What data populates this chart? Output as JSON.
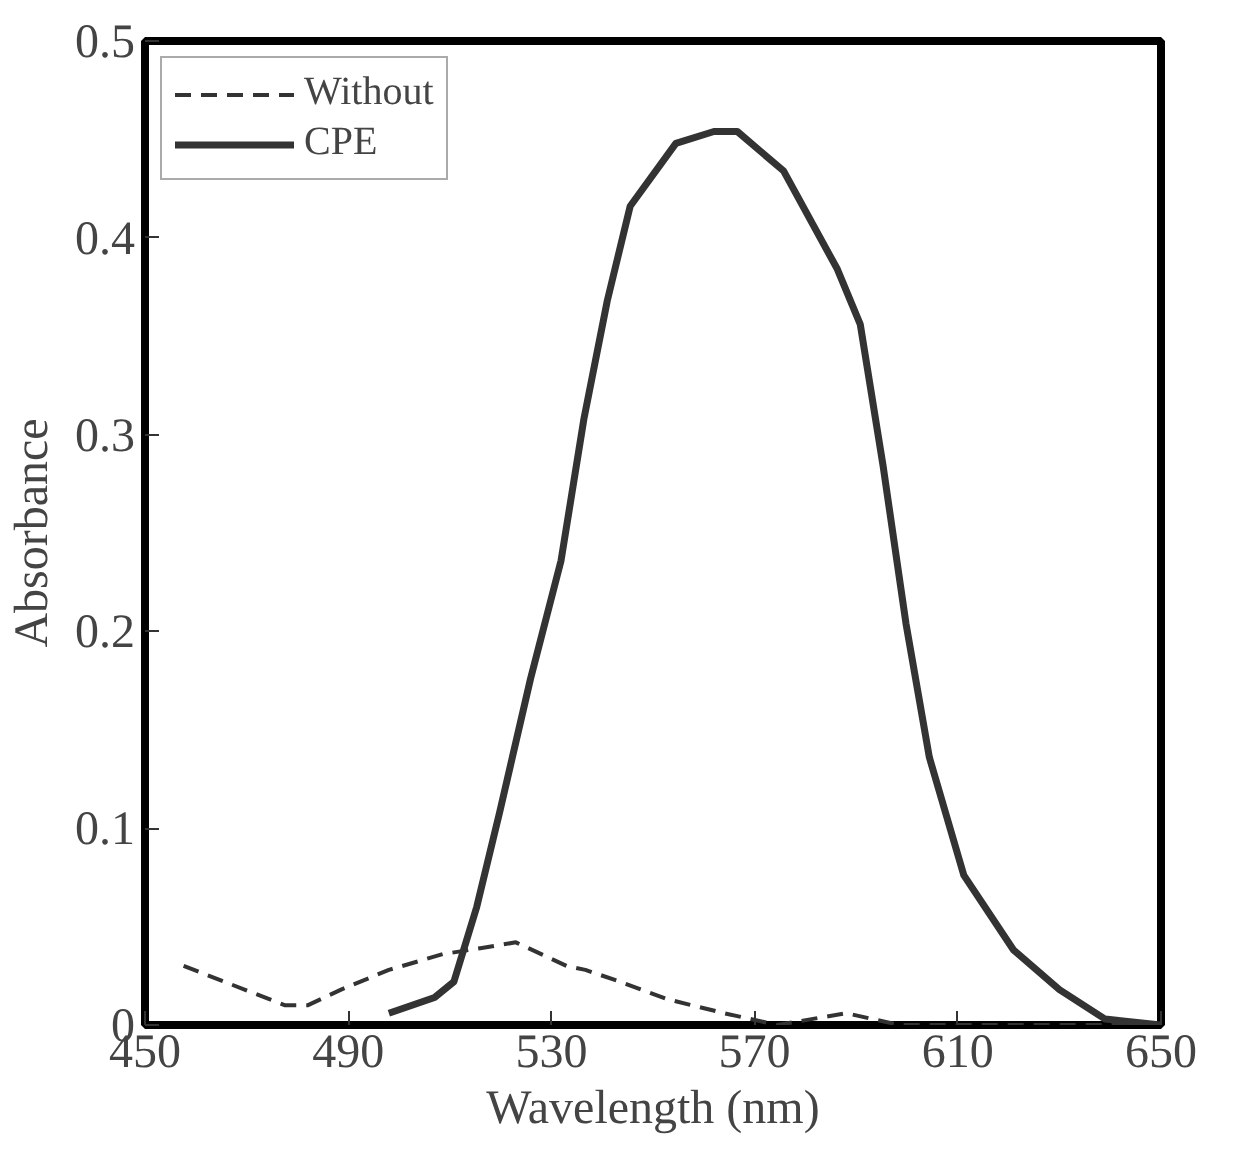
{
  "chart_data": {
    "type": "line",
    "xlabel": "Wavelength (nm)",
    "ylabel": "Absorbance",
    "xlim": [
      450,
      650
    ],
    "xticks": [
      450,
      490,
      530,
      570,
      610,
      650
    ],
    "ylim": [
      0,
      0.5
    ],
    "yticks": [
      0,
      0.1,
      0.2,
      0.3,
      0.4,
      0.5
    ],
    "grid": false,
    "legend": "top left",
    "series": [
      {
        "name": "Without",
        "color": "#333333",
        "line_style": "dashed",
        "x": [
          457.6,
          477.6,
          482,
          488.6,
          498,
          508.6,
          516,
          523,
          533,
          536.7,
          543.5,
          553,
          564,
          574.5,
          588,
          598.6,
          650
        ],
        "values": [
          0.03,
          0.01,
          0.01,
          0.018,
          0.028,
          0.036,
          0.039,
          0.042,
          0.03,
          0.028,
          0.022,
          0.013,
          0.006,
          0.0,
          0.006,
          0.0,
          0.0
        ]
      },
      {
        "name": "CPE",
        "color": "#333333",
        "line_style": "solid",
        "x": [
          498,
          507,
          510.8,
          515.3,
          519.8,
          525.9,
          531.9,
          536.4,
          541,
          545.5,
          554.5,
          562,
          566.6,
          575.7,
          586.3,
          590.8,
          595.3,
          599.8,
          604.4,
          611.2,
          621,
          630,
          639,
          650
        ],
        "values": [
          0.006,
          0.014,
          0.022,
          0.06,
          0.108,
          0.176,
          0.236,
          0.308,
          0.368,
          0.416,
          0.448,
          0.454,
          0.454,
          0.434,
          0.384,
          0.356,
          0.284,
          0.204,
          0.136,
          0.076,
          0.038,
          0.018,
          0.003,
          0.0
        ]
      }
    ]
  }
}
